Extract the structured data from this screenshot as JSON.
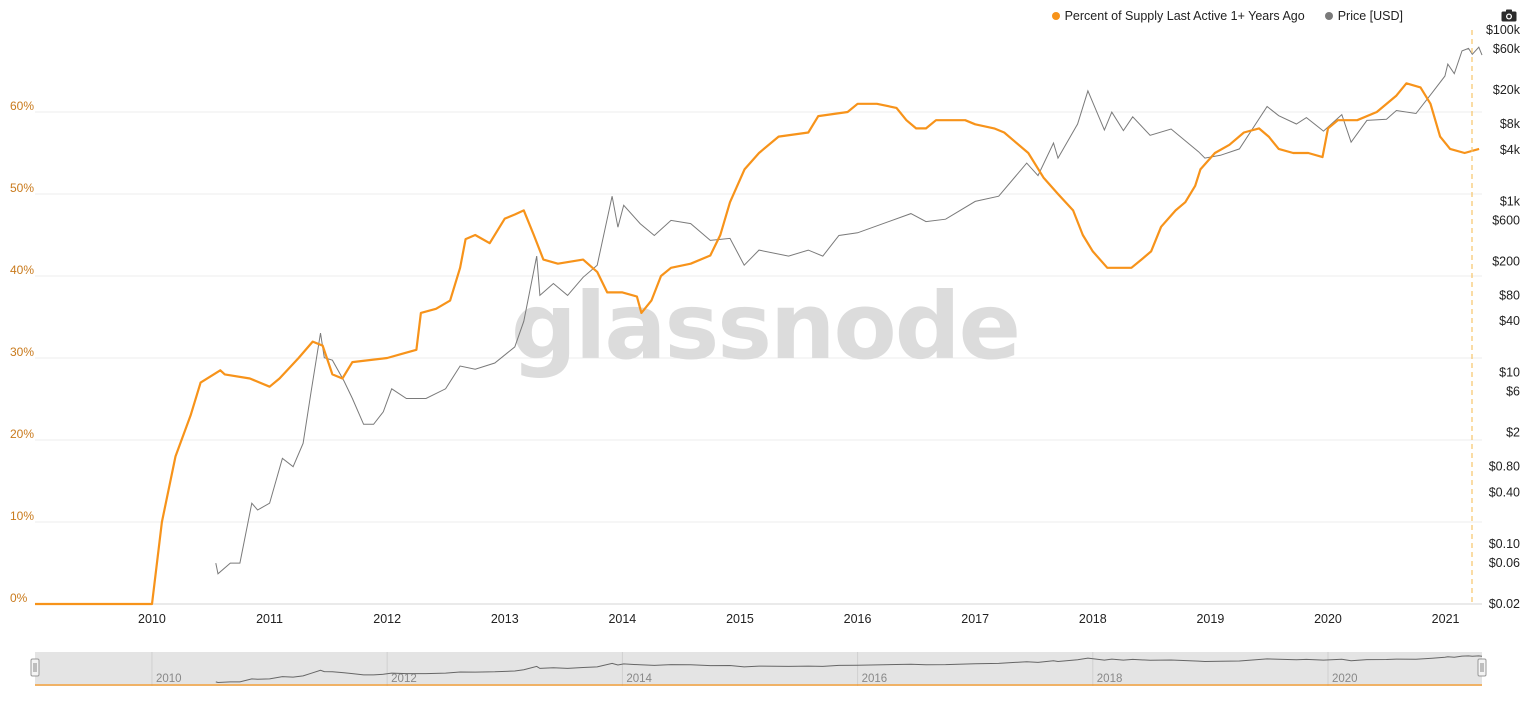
{
  "legend": {
    "supply": "Percent of Supply Last Active 1+ Years Ago",
    "price": "Price [USD]"
  },
  "watermark": "glassnode",
  "icons": {
    "export": "camera-icon"
  },
  "colors": {
    "supply": "#f7931a",
    "price": "#7a7a7a",
    "navigator_fill": "#e4e4e4"
  },
  "chart_data": {
    "type": "line",
    "title": "",
    "x_ticks": [
      "2010",
      "2011",
      "2012",
      "2013",
      "2014",
      "2015",
      "2016",
      "2017",
      "2018",
      "2019",
      "2020",
      "2021"
    ],
    "xlim": [
      "2009-01-03",
      "2021-04-24"
    ],
    "y_left": {
      "label": "",
      "ticks": [
        "0%",
        "10%",
        "20%",
        "30%",
        "40%",
        "50%",
        "60%"
      ],
      "range": [
        0,
        70
      ]
    },
    "y_right": {
      "label": "",
      "scale": "log",
      "ticks": [
        "$100k",
        "$60k",
        "$20k",
        "$8k",
        "$4k",
        "$1k",
        "$600",
        "$200",
        "$80",
        "$40",
        "$10",
        "$6",
        "$2",
        "$0.80",
        "$0.40",
        "$0.10",
        "$0.06",
        "$0.02"
      ],
      "range": [
        0.02,
        100000
      ]
    },
    "navigator_labels": [
      "2010",
      "2012",
      "2014",
      "2016",
      "2018",
      "2020"
    ],
    "grid": true,
    "legend_position": "top-right",
    "series": [
      {
        "name": "Percent of Supply Last Active 1+ Years Ago",
        "axis": "left",
        "color": "#f7931a",
        "points": [
          [
            "2009-01-03",
            0
          ],
          [
            "2010-01-01",
            0
          ],
          [
            "2010-02-01",
            10
          ],
          [
            "2010-03-15",
            18
          ],
          [
            "2010-05-01",
            23
          ],
          [
            "2010-06-01",
            27
          ],
          [
            "2010-08-01",
            28.5
          ],
          [
            "2010-08-15",
            28
          ],
          [
            "2010-11-01",
            27.5
          ],
          [
            "2011-01-01",
            26.5
          ],
          [
            "2011-02-01",
            27.5
          ],
          [
            "2011-04-01",
            30
          ],
          [
            "2011-05-15",
            32
          ],
          [
            "2011-06-15",
            31.5
          ],
          [
            "2011-07-15",
            28
          ],
          [
            "2011-08-15",
            27.5
          ],
          [
            "2011-09-15",
            29.5
          ],
          [
            "2012-01-01",
            30
          ],
          [
            "2012-02-15",
            30.5
          ],
          [
            "2012-04-01",
            31
          ],
          [
            "2012-04-15",
            35.5
          ],
          [
            "2012-06-01",
            36
          ],
          [
            "2012-07-15",
            37
          ],
          [
            "2012-08-15",
            41
          ],
          [
            "2012-09-01",
            44.5
          ],
          [
            "2012-10-01",
            45
          ],
          [
            "2012-11-15",
            44
          ],
          [
            "2013-01-01",
            47
          ],
          [
            "2013-02-01",
            47.5
          ],
          [
            "2013-03-01",
            48
          ],
          [
            "2013-04-01",
            45
          ],
          [
            "2013-05-01",
            42
          ],
          [
            "2013-06-15",
            41.5
          ],
          [
            "2013-09-01",
            42
          ],
          [
            "2013-10-15",
            40.5
          ],
          [
            "2013-11-15",
            38
          ],
          [
            "2014-01-01",
            38
          ],
          [
            "2014-02-15",
            37.5
          ],
          [
            "2014-03-01",
            35.5
          ],
          [
            "2014-04-01",
            37
          ],
          [
            "2014-05-01",
            40
          ],
          [
            "2014-06-01",
            41
          ],
          [
            "2014-08-01",
            41.5
          ],
          [
            "2014-10-01",
            42.5
          ],
          [
            "2014-11-01",
            45
          ],
          [
            "2014-12-01",
            49
          ],
          [
            "2015-01-15",
            53
          ],
          [
            "2015-03-01",
            55
          ],
          [
            "2015-05-01",
            57
          ],
          [
            "2015-08-01",
            57.5
          ],
          [
            "2015-09-01",
            59.5
          ],
          [
            "2015-12-01",
            60
          ],
          [
            "2016-01-01",
            61
          ],
          [
            "2016-03-01",
            61
          ],
          [
            "2016-05-01",
            60.5
          ],
          [
            "2016-06-01",
            59
          ],
          [
            "2016-07-01",
            58
          ],
          [
            "2016-08-01",
            58
          ],
          [
            "2016-09-01",
            59
          ],
          [
            "2016-12-01",
            59
          ],
          [
            "2017-01-01",
            58.5
          ],
          [
            "2017-03-01",
            58
          ],
          [
            "2017-04-01",
            57.5
          ],
          [
            "2017-05-01",
            56.5
          ],
          [
            "2017-06-15",
            55
          ],
          [
            "2017-08-01",
            52
          ],
          [
            "2017-09-15",
            50
          ],
          [
            "2017-11-01",
            48
          ],
          [
            "2017-12-01",
            45
          ],
          [
            "2018-01-01",
            43
          ],
          [
            "2018-02-15",
            41
          ],
          [
            "2018-04-01",
            41
          ],
          [
            "2018-05-01",
            41
          ],
          [
            "2018-06-01",
            42
          ],
          [
            "2018-07-01",
            43
          ],
          [
            "2018-08-01",
            46
          ],
          [
            "2018-09-15",
            48
          ],
          [
            "2018-10-15",
            49
          ],
          [
            "2018-11-15",
            51
          ],
          [
            "2018-12-01",
            53
          ],
          [
            "2019-01-15",
            55
          ],
          [
            "2019-03-01",
            56
          ],
          [
            "2019-04-15",
            57.5
          ],
          [
            "2019-06-01",
            58
          ],
          [
            "2019-07-01",
            57
          ],
          [
            "2019-08-01",
            55.5
          ],
          [
            "2019-09-15",
            55
          ],
          [
            "2019-11-01",
            55
          ],
          [
            "2019-12-15",
            54.5
          ],
          [
            "2020-01-01",
            58
          ],
          [
            "2020-02-01",
            59
          ],
          [
            "2020-04-01",
            59
          ],
          [
            "2020-06-01",
            60
          ],
          [
            "2020-08-01",
            62
          ],
          [
            "2020-09-01",
            63.5
          ],
          [
            "2020-10-15",
            63
          ],
          [
            "2020-11-15",
            61
          ],
          [
            "2020-12-15",
            57
          ],
          [
            "2021-01-15",
            55.5
          ],
          [
            "2021-03-01",
            55
          ],
          [
            "2021-04-15",
            55.5
          ]
        ]
      },
      {
        "name": "Price [USD]",
        "axis": "right",
        "color": "#7a7a7a",
        "points": [
          [
            "2010-07-18",
            0.06
          ],
          [
            "2010-07-25",
            0.045
          ],
          [
            "2010-09-01",
            0.06
          ],
          [
            "2010-10-01",
            0.06
          ],
          [
            "2010-11-07",
            0.3
          ],
          [
            "2010-11-25",
            0.25
          ],
          [
            "2011-01-01",
            0.3
          ],
          [
            "2011-02-10",
            1.0
          ],
          [
            "2011-03-15",
            0.8
          ],
          [
            "2011-04-15",
            1.5
          ],
          [
            "2011-05-10",
            6
          ],
          [
            "2011-06-08",
            29
          ],
          [
            "2011-06-20",
            15
          ],
          [
            "2011-07-15",
            14
          ],
          [
            "2011-08-20",
            8
          ],
          [
            "2011-09-15",
            5
          ],
          [
            "2011-10-20",
            2.5
          ],
          [
            "2011-11-20",
            2.5
          ],
          [
            "2011-12-20",
            3.5
          ],
          [
            "2012-01-15",
            6.5
          ],
          [
            "2012-03-01",
            5
          ],
          [
            "2012-05-01",
            5
          ],
          [
            "2012-07-01",
            6.5
          ],
          [
            "2012-08-15",
            12
          ],
          [
            "2012-10-01",
            11
          ],
          [
            "2012-12-01",
            13
          ],
          [
            "2013-02-01",
            20
          ],
          [
            "2013-03-01",
            40
          ],
          [
            "2013-04-10",
            230
          ],
          [
            "2013-04-20",
            80
          ],
          [
            "2013-06-01",
            110
          ],
          [
            "2013-07-15",
            80
          ],
          [
            "2013-09-01",
            130
          ],
          [
            "2013-10-15",
            180
          ],
          [
            "2013-11-30",
            1150
          ],
          [
            "2013-12-18",
            500
          ],
          [
            "2014-01-05",
            900
          ],
          [
            "2014-02-25",
            550
          ],
          [
            "2014-04-10",
            400
          ],
          [
            "2014-06-01",
            600
          ],
          [
            "2014-08-01",
            550
          ],
          [
            "2014-10-01",
            350
          ],
          [
            "2014-12-01",
            370
          ],
          [
            "2015-01-14",
            180
          ],
          [
            "2015-03-01",
            270
          ],
          [
            "2015-06-01",
            230
          ],
          [
            "2015-08-01",
            270
          ],
          [
            "2015-09-15",
            230
          ],
          [
            "2015-11-04",
            400
          ],
          [
            "2016-01-01",
            430
          ],
          [
            "2016-06-15",
            720
          ],
          [
            "2016-08-01",
            580
          ],
          [
            "2016-10-01",
            620
          ],
          [
            "2017-01-01",
            1000
          ],
          [
            "2017-03-15",
            1150
          ],
          [
            "2017-06-10",
            2800
          ],
          [
            "2017-07-15",
            2000
          ],
          [
            "2017-09-01",
            4800
          ],
          [
            "2017-09-15",
            3200
          ],
          [
            "2017-11-15",
            8000
          ],
          [
            "2017-12-17",
            19500
          ],
          [
            "2018-02-06",
            6800
          ],
          [
            "2018-03-01",
            11000
          ],
          [
            "2018-04-06",
            6700
          ],
          [
            "2018-05-05",
            9700
          ],
          [
            "2018-06-28",
            5900
          ],
          [
            "2018-09-01",
            7000
          ],
          [
            "2018-11-25",
            3800
          ],
          [
            "2018-12-15",
            3200
          ],
          [
            "2019-02-01",
            3450
          ],
          [
            "2019-04-01",
            4100
          ],
          [
            "2019-06-26",
            12800
          ],
          [
            "2019-08-01",
            10000
          ],
          [
            "2019-09-25",
            8000
          ],
          [
            "2019-10-26",
            9500
          ],
          [
            "2019-12-18",
            6600
          ],
          [
            "2020-02-13",
            10300
          ],
          [
            "2020-03-13",
            4900
          ],
          [
            "2020-05-01",
            8800
          ],
          [
            "2020-07-01",
            9100
          ],
          [
            "2020-08-01",
            11500
          ],
          [
            "2020-10-01",
            10600
          ],
          [
            "2020-11-20",
            18500
          ],
          [
            "2020-12-30",
            29000
          ],
          [
            "2021-01-08",
            40000
          ],
          [
            "2021-01-28",
            31000
          ],
          [
            "2021-02-21",
            57000
          ],
          [
            "2021-03-13",
            61000
          ],
          [
            "2021-03-25",
            52000
          ],
          [
            "2021-04-14",
            63000
          ],
          [
            "2021-04-24",
            51000
          ]
        ]
      }
    ]
  }
}
